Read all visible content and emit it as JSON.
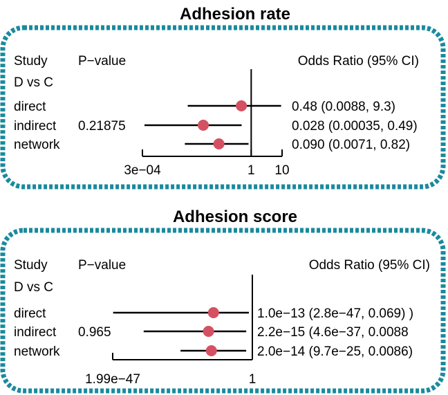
{
  "colors": {
    "frame": "#1a8a9e",
    "point": "#d45163",
    "line": "#000000"
  },
  "chart_data": [
    {
      "type": "forest",
      "title": "Adhesion rate",
      "headers": {
        "study": "Study",
        "pvalue": "P−value",
        "estimate": "Odds Ratio (95% CI)"
      },
      "group_label": "D vs C",
      "x_scale": "log",
      "x_range": [
        0.0003,
        10
      ],
      "reference_line": 1,
      "ticks": [
        {
          "value": 0.0003,
          "label": "3e−04"
        },
        {
          "value": 1,
          "label": "1"
        },
        {
          "value": 10,
          "label": "10"
        }
      ],
      "rows": [
        {
          "label": "direct",
          "pvalue": "",
          "estimate": 0.48,
          "lower": 0.0088,
          "upper": 9.3,
          "ci_text": "0.48 (0.0088, 9.3)"
        },
        {
          "label": "indirect",
          "pvalue": "0.21875",
          "estimate": 0.028,
          "lower": 0.00035,
          "upper": 0.49,
          "ci_text": "0.028 (0.00035, 0.49)"
        },
        {
          "label": "network",
          "pvalue": "",
          "estimate": 0.09,
          "lower": 0.0071,
          "upper": 0.82,
          "ci_text": "0.090 (0.0071, 0.82)"
        }
      ]
    },
    {
      "type": "forest",
      "title": "Adhesion score",
      "headers": {
        "study": "Study",
        "pvalue": "P−value",
        "estimate": "Odds Ratio (95% CI)"
      },
      "group_label": "D vs C",
      "x_scale": "log",
      "x_range": [
        1.99e-47,
        1
      ],
      "reference_line": 1,
      "ticks": [
        {
          "value": 1.99e-47,
          "label": "1.99e−47"
        },
        {
          "value": 1,
          "label": "1"
        }
      ],
      "rows": [
        {
          "label": "direct",
          "pvalue": "",
          "estimate": 1e-13,
          "lower": 2.8e-47,
          "upper": 0.069,
          "ci_text": "1.0e−13 (2.8e−47, 0.069) )"
        },
        {
          "label": "indirect",
          "pvalue": "0.965",
          "estimate": 2.2e-15,
          "lower": 4.6e-37,
          "upper": 0.0088,
          "ci_text": "2.2e−15 (4.6e−37, 0.0088"
        },
        {
          "label": "network",
          "pvalue": "",
          "estimate": 2e-14,
          "lower": 9.7e-25,
          "upper": 0.0086,
          "ci_text": "2.0e−14 (9.7e−25, 0.0086)"
        }
      ]
    }
  ]
}
